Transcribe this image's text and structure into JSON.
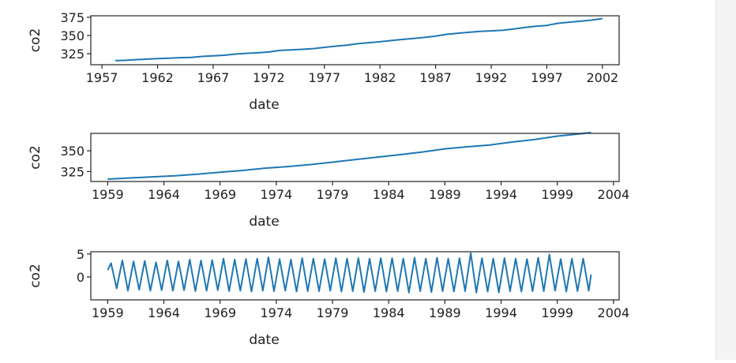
{
  "chart_data": [
    {
      "type": "line",
      "title": "",
      "xlabel": "date",
      "ylabel": "co2",
      "xlim": [
        1956.0,
        2003.5
      ],
      "ylim": [
        310,
        377
      ],
      "xticks": [
        1957,
        1962,
        1967,
        1972,
        1977,
        1982,
        1987,
        1992,
        1997,
        2002
      ],
      "yticks": [
        325,
        350,
        375
      ],
      "series": [
        {
          "color": "#1f77b4",
          "x": [
            1958.2,
            1959.0,
            1960.0,
            1961.0,
            1962.0,
            1963.0,
            1964.0,
            1965.0,
            1966.0,
            1967.0,
            1968.0,
            1969.0,
            1970.0,
            1971.0,
            1972.0,
            1973.0,
            1974.0,
            1975.0,
            1976.0,
            1977.0,
            1978.0,
            1979.0,
            1980.0,
            1981.0,
            1982.0,
            1983.0,
            1984.0,
            1985.0,
            1986.0,
            1987.0,
            1988.0,
            1989.0,
            1990.0,
            1991.0,
            1992.0,
            1993.0,
            1994.0,
            1995.0,
            1996.0,
            1997.0,
            1998.0,
            1999.0,
            2000.0,
            2001.0,
            2002.0
          ],
          "y": [
            315.7,
            315.9,
            316.9,
            317.6,
            318.4,
            318.9,
            319.6,
            320.0,
            321.3,
            322.1,
            323.0,
            324.6,
            325.6,
            326.3,
            327.4,
            329.6,
            330.2,
            331.1,
            332.0,
            333.8,
            335.4,
            336.8,
            338.7,
            340.1,
            341.4,
            343.1,
            344.6,
            346.0,
            347.4,
            349.2,
            351.6,
            353.1,
            354.4,
            355.6,
            356.4,
            357.1,
            358.9,
            360.9,
            362.6,
            363.8,
            366.7,
            368.3,
            369.5,
            371.1,
            373.2
          ]
        }
      ]
    },
    {
      "type": "line",
      "title": "",
      "xlabel": "date",
      "ylabel": "co2",
      "xlim": [
        1957.5,
        2004.5
      ],
      "ylim": [
        313,
        371
      ],
      "xticks": [
        1959,
        1964,
        1969,
        1974,
        1979,
        1984,
        1989,
        1994,
        1999,
        2004
      ],
      "yticks": [
        325,
        350
      ],
      "series": [
        {
          "color": "#1f77b4",
          "x": [
            1959.0,
            1961.0,
            1963.0,
            1965.0,
            1967.0,
            1969.0,
            1971.0,
            1973.0,
            1975.0,
            1977.0,
            1979.0,
            1981.0,
            1983.0,
            1985.0,
            1987.0,
            1989.0,
            1991.0,
            1993.0,
            1995.0,
            1997.0,
            1999.0,
            2001.0,
            2002.0
          ],
          "y": [
            315.9,
            317.3,
            318.6,
            319.8,
            321.8,
            324.1,
            326.3,
            329.1,
            331.0,
            333.3,
            336.3,
            339.3,
            342.4,
            345.3,
            348.6,
            352.4,
            354.8,
            357.0,
            360.5,
            363.7,
            367.7,
            370.4,
            372.0
          ]
        }
      ]
    },
    {
      "type": "line",
      "title": "",
      "xlabel": "date",
      "ylabel": "co2",
      "xlim": [
        1957.5,
        2004.5
      ],
      "ylim": [
        -5,
        5.5
      ],
      "xticks": [
        1959,
        1964,
        1969,
        1974,
        1979,
        1984,
        1989,
        1994,
        1999,
        2004
      ],
      "yticks": [
        0,
        5
      ],
      "series": [
        {
          "color": "#1f77b4",
          "x": [
            1959.0,
            1959.3,
            1959.8,
            1960.3,
            1960.8,
            1961.3,
            1961.8,
            1962.3,
            1962.8,
            1963.3,
            1963.8,
            1964.3,
            1964.8,
            1965.3,
            1965.8,
            1966.3,
            1966.8,
            1967.3,
            1967.8,
            1968.3,
            1968.8,
            1969.3,
            1969.8,
            1970.3,
            1970.8,
            1971.3,
            1971.8,
            1972.3,
            1972.8,
            1973.3,
            1973.8,
            1974.3,
            1974.8,
            1975.3,
            1975.8,
            1976.3,
            1976.8,
            1977.3,
            1977.8,
            1978.3,
            1978.8,
            1979.3,
            1979.8,
            1980.3,
            1980.8,
            1981.3,
            1981.8,
            1982.3,
            1982.8,
            1983.3,
            1983.8,
            1984.3,
            1984.8,
            1985.3,
            1985.8,
            1986.3,
            1986.8,
            1987.3,
            1987.8,
            1988.3,
            1988.8,
            1989.3,
            1989.8,
            1990.3,
            1990.8,
            1991.3,
            1991.8,
            1992.3,
            1992.8,
            1993.3,
            1993.8,
            1994.3,
            1994.8,
            1995.3,
            1995.8,
            1996.3,
            1996.8,
            1997.3,
            1997.8,
            1998.3,
            1998.8,
            1999.3,
            1999.8,
            2000.3,
            2000.8,
            2001.3,
            2001.8,
            2002.0
          ],
          "y": [
            1.5,
            3.0,
            -2.5,
            3.6,
            -3.0,
            3.4,
            -2.8,
            3.5,
            -3.0,
            3.2,
            -2.9,
            3.6,
            -3.0,
            3.4,
            -2.9,
            3.8,
            -3.1,
            3.6,
            -3.0,
            3.7,
            -2.9,
            4.0,
            -3.1,
            3.8,
            -3.0,
            3.9,
            -3.2,
            4.0,
            -3.0,
            4.3,
            -3.1,
            3.9,
            -3.0,
            3.8,
            -3.2,
            4.1,
            -3.1,
            4.0,
            -3.1,
            3.9,
            -3.0,
            4.1,
            -3.2,
            4.0,
            -3.1,
            4.1,
            -3.3,
            4.0,
            -3.1,
            4.1,
            -3.2,
            4.1,
            -3.1,
            4.0,
            -3.4,
            4.2,
            -3.1,
            4.0,
            -3.3,
            4.2,
            -3.1,
            4.0,
            -3.2,
            4.1,
            -3.1,
            5.2,
            -3.4,
            4.1,
            -3.2,
            4.0,
            -3.4,
            4.1,
            -3.1,
            4.0,
            -3.2,
            3.9,
            -3.1,
            4.2,
            -3.1,
            4.9,
            -3.0,
            3.9,
            -3.2,
            4.0,
            -3.1,
            4.0,
            -3.0,
            0.5
          ]
        }
      ]
    }
  ]
}
